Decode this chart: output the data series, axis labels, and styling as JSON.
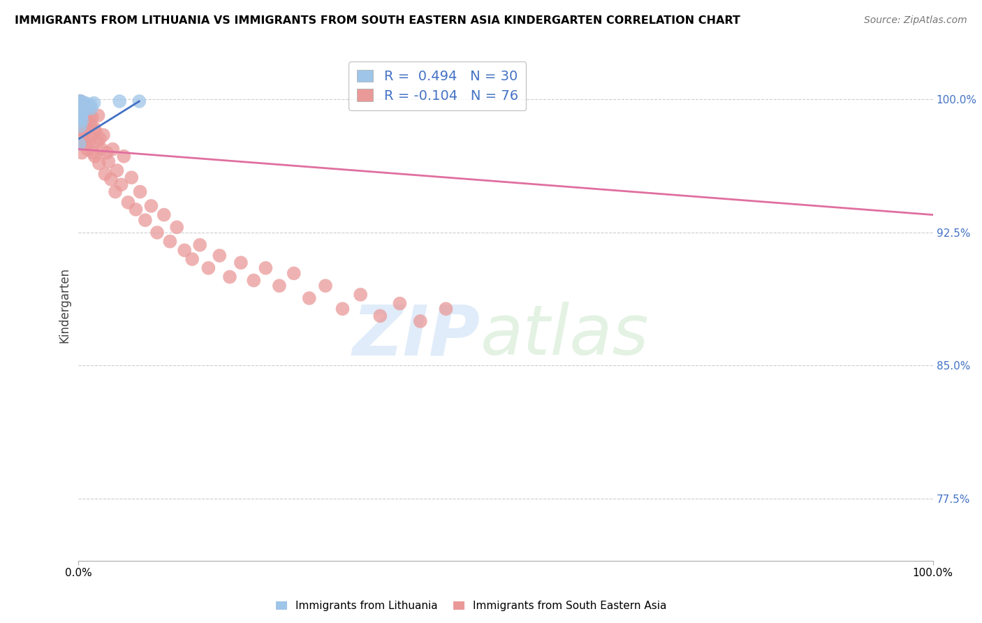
{
  "title": "IMMIGRANTS FROM LITHUANIA VS IMMIGRANTS FROM SOUTH EASTERN ASIA KINDERGARTEN CORRELATION CHART",
  "source": "Source: ZipAtlas.com",
  "xlabel_bottom_left": "0.0%",
  "xlabel_bottom_right": "100.0%",
  "ylabel": "Kindergarten",
  "ytick_labels": [
    "77.5%",
    "85.0%",
    "92.5%",
    "100.0%"
  ],
  "ytick_values": [
    0.775,
    0.85,
    0.925,
    1.0
  ],
  "legend_blue_r": "R =  0.494",
  "legend_blue_n": "N = 30",
  "legend_pink_r": "R = -0.104",
  "legend_pink_n": "N = 76",
  "blue_color": "#9fc5e8",
  "pink_color": "#ea9999",
  "blue_line_color": "#4472c4",
  "pink_line_color": "#e06fa0",
  "blue_x": [
    0.001,
    0.001,
    0.001,
    0.001,
    0.002,
    0.002,
    0.002,
    0.002,
    0.003,
    0.003,
    0.003,
    0.004,
    0.004,
    0.004,
    0.004,
    0.005,
    0.005,
    0.006,
    0.006,
    0.007,
    0.008,
    0.009,
    0.01,
    0.011,
    0.012,
    0.014,
    0.015,
    0.018,
    0.048,
    0.071
  ],
  "blue_y": [
    0.998,
    0.995,
    0.99,
    0.975,
    0.999,
    0.997,
    0.993,
    0.985,
    0.999,
    0.997,
    0.99,
    0.998,
    0.996,
    0.992,
    0.988,
    0.997,
    0.993,
    0.998,
    0.994,
    0.997,
    0.998,
    0.996,
    0.997,
    0.996,
    0.996,
    0.997,
    0.995,
    0.998,
    0.999,
    0.999
  ],
  "pink_x": [
    0.001,
    0.001,
    0.001,
    0.002,
    0.002,
    0.002,
    0.003,
    0.003,
    0.004,
    0.004,
    0.004,
    0.005,
    0.005,
    0.006,
    0.006,
    0.007,
    0.007,
    0.008,
    0.008,
    0.009,
    0.01,
    0.01,
    0.011,
    0.012,
    0.013,
    0.014,
    0.015,
    0.016,
    0.017,
    0.018,
    0.019,
    0.02,
    0.022,
    0.023,
    0.024,
    0.025,
    0.027,
    0.029,
    0.031,
    0.033,
    0.035,
    0.038,
    0.04,
    0.043,
    0.045,
    0.05,
    0.053,
    0.058,
    0.062,
    0.067,
    0.072,
    0.078,
    0.085,
    0.092,
    0.1,
    0.107,
    0.115,
    0.124,
    0.133,
    0.142,
    0.152,
    0.165,
    0.177,
    0.19,
    0.205,
    0.219,
    0.235,
    0.252,
    0.27,
    0.289,
    0.309,
    0.33,
    0.353,
    0.376,
    0.4,
    0.43
  ],
  "pink_y": [
    0.999,
    0.996,
    0.988,
    0.999,
    0.992,
    0.98,
    0.998,
    0.975,
    0.996,
    0.988,
    0.97,
    0.996,
    0.985,
    0.994,
    0.978,
    0.997,
    0.982,
    0.993,
    0.975,
    0.988,
    0.994,
    0.972,
    0.984,
    0.99,
    0.976,
    0.986,
    0.979,
    0.99,
    0.97,
    0.984,
    0.968,
    0.982,
    0.976,
    0.991,
    0.964,
    0.978,
    0.972,
    0.98,
    0.958,
    0.97,
    0.965,
    0.955,
    0.972,
    0.948,
    0.96,
    0.952,
    0.968,
    0.942,
    0.956,
    0.938,
    0.948,
    0.932,
    0.94,
    0.925,
    0.935,
    0.92,
    0.928,
    0.915,
    0.91,
    0.918,
    0.905,
    0.912,
    0.9,
    0.908,
    0.898,
    0.905,
    0.895,
    0.902,
    0.888,
    0.895,
    0.882,
    0.89,
    0.878,
    0.885,
    0.875,
    0.882
  ],
  "pink_line_start_x": 0.0,
  "pink_line_start_y": 0.972,
  "pink_line_end_x": 1.0,
  "pink_line_end_y": 0.935,
  "blue_line_start_x": 0.001,
  "blue_line_start_y": 0.978,
  "blue_line_end_x": 0.071,
  "blue_line_end_y": 0.999,
  "xlim_min": 0.0,
  "xlim_max": 1.0,
  "ylim_min": 0.74,
  "ylim_max": 1.028,
  "bottom_legend_square": true
}
